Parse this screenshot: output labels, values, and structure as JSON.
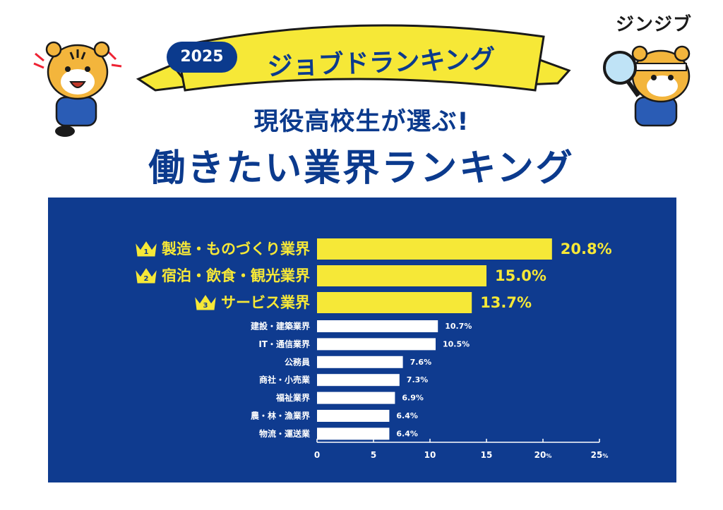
{
  "brand": "ジンジブ",
  "year": "2025",
  "banner_title": "ジョブドランキング",
  "subtitle": "現役高校生が選ぶ!",
  "title": "働きたい業界ランキング",
  "colors": {
    "navy": "#0f3b8f",
    "yellow": "#f6e837",
    "white": "#ffffff"
  },
  "chart_data": {
    "type": "bar",
    "orientation": "horizontal",
    "categories": [
      "製造・ものづくり業界",
      "宿泊・飲食・観光業界",
      "サービス業界",
      "建設・建築業界",
      "IT・通信業界",
      "公務員",
      "商社・小売業",
      "福祉業界",
      "農・林・漁業界",
      "物流・運送業"
    ],
    "ranks": [
      "1",
      "2",
      "3"
    ],
    "values": [
      20.8,
      15.0,
      13.7,
      10.7,
      10.5,
      7.6,
      7.3,
      6.9,
      6.4,
      6.4
    ],
    "value_labels": [
      "20.8%",
      "15.0%",
      "13.7%",
      "10.7%",
      "10.5%",
      "7.6%",
      "7.3%",
      "6.9%",
      "6.4%",
      "6.4%"
    ],
    "xlim": [
      0,
      25
    ],
    "ticks": [
      "0",
      "5",
      "10",
      "15",
      "20",
      "25"
    ],
    "tick_unit": "%"
  }
}
